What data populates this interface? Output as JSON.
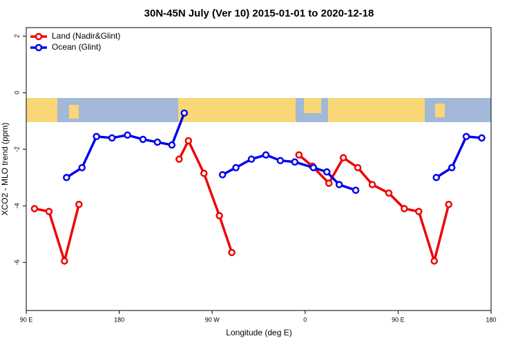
{
  "chart_data": {
    "type": "line",
    "title": "30N-45N July (Ver 10)   2015-01-01 to 2020-12-18",
    "x_label": "Longitude (deg E)",
    "y_label": "XCO2 - MLO trend (ppm)",
    "xlim": [
      90,
      540
    ],
    "ylim": [
      -7.7,
      2.3
    ],
    "xticks": [
      {
        "value": 90,
        "label": "90 E"
      },
      180,
      {
        "value": 270,
        "label": "90 W"
      },
      {
        "value": 360,
        "label": "0"
      },
      {
        "value": 450,
        "label": "90 E"
      },
      {
        "value": 540,
        "label": "180"
      }
    ],
    "yticks": [
      2,
      0,
      -2,
      -4,
      -6
    ],
    "legend": "top-left",
    "series": [
      {
        "name": "Land (Nadir&Glint)",
        "color": "#ee0000",
        "x": [
          98,
          112,
          127,
          141,
          null,
          238,
          247,
          262,
          277,
          289,
          null,
          354,
          367,
          383,
          397,
          411,
          425,
          441,
          456,
          470,
          485,
          499
        ],
        "values": [
          -4.1,
          -4.2,
          -5.95,
          -3.95,
          null,
          -2.35,
          -1.7,
          -2.85,
          -4.35,
          -5.65,
          null,
          -2.2,
          -2.6,
          -3.2,
          -2.3,
          -2.65,
          -3.25,
          -3.55,
          -4.1,
          -4.2,
          -5.95,
          -3.95
        ]
      },
      {
        "name": "Ocean (Glint)",
        "color": "#0000ee",
        "x": [
          129,
          144,
          158,
          173,
          188,
          203,
          217,
          231,
          243,
          null,
          280,
          293,
          308,
          322,
          336,
          350,
          368,
          381,
          393,
          409,
          null,
          487,
          502,
          516,
          531
        ],
        "values": [
          -3.0,
          -2.65,
          -1.55,
          -1.6,
          -1.5,
          -1.65,
          -1.75,
          -1.85,
          -0.72,
          null,
          -2.9,
          -2.65,
          -2.35,
          -2.2,
          -2.4,
          -2.45,
          -2.65,
          -2.8,
          -3.25,
          -3.45,
          null,
          -3.0,
          -2.65,
          -1.55,
          -1.6
        ]
      }
    ]
  }
}
